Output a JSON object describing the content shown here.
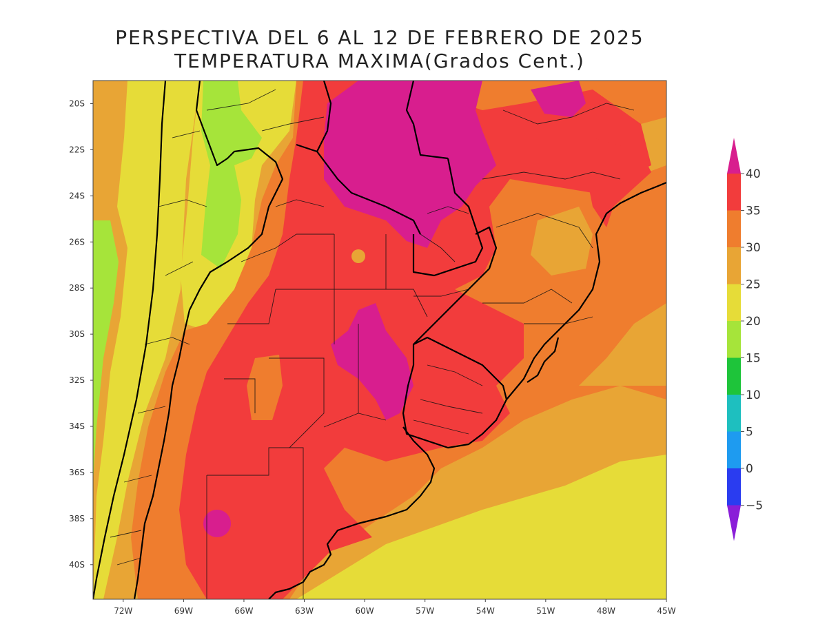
{
  "title": {
    "line1": "PERSPECTIVA DEL 6 AL 12 DE FEBRERO DE 2025",
    "line2": "TEMPERATURA MAXIMA(Grados Cent.)"
  },
  "map": {
    "extent": {
      "lon_min": -73.5,
      "lon_max": -45,
      "lat_max": -19,
      "lat_min": -41.5
    },
    "lat_ticks": [
      {
        "lat": -20,
        "label": "20S"
      },
      {
        "lat": -22,
        "label": "22S"
      },
      {
        "lat": -24,
        "label": "24S"
      },
      {
        "lat": -26,
        "label": "26S"
      },
      {
        "lat": -28,
        "label": "28S"
      },
      {
        "lat": -30,
        "label": "30S"
      },
      {
        "lat": -32,
        "label": "32S"
      },
      {
        "lat": -34,
        "label": "34S"
      },
      {
        "lat": -36,
        "label": "36S"
      },
      {
        "lat": -38,
        "label": "38S"
      },
      {
        "lat": -40,
        "label": "40S"
      }
    ],
    "lon_ticks": [
      {
        "lon": -72,
        "label": "72W"
      },
      {
        "lon": -69,
        "label": "69W"
      },
      {
        "lon": -66,
        "label": "66W"
      },
      {
        "lon": -63,
        "label": "63W"
      },
      {
        "lon": -60,
        "label": "60W"
      },
      {
        "lon": -57,
        "label": "57W"
      },
      {
        "lon": -54,
        "label": "54W"
      },
      {
        "lon": -51,
        "label": "51W"
      },
      {
        "lon": -48,
        "label": "48W"
      },
      {
        "lon": -45,
        "label": "45W"
      }
    ]
  },
  "colorbar": {
    "bins": [
      {
        "range": "35-40",
        "color": "#f23c3c"
      },
      {
        "range": "30-35",
        "color": "#ef7d2e"
      },
      {
        "range": "25-30",
        "color": "#e8a535"
      },
      {
        "range": "20-25",
        "color": "#e6dc38"
      },
      {
        "range": "15-20",
        "color": "#a6e43a"
      },
      {
        "range": "10-15",
        "color": "#1ec43a"
      },
      {
        "range": "5-10",
        "color": "#1ebfbf"
      },
      {
        "range": "0-5",
        "color": "#1e9bf0"
      },
      {
        "range": "-5-0",
        "color": "#2a3cf0"
      }
    ],
    "top_color": "#d81e8e",
    "bottom_color": "#8a1ed8",
    "labels": [
      "40",
      "35",
      "30",
      "25",
      "20",
      "15",
      "10",
      "5",
      "0",
      "−5"
    ]
  },
  "colors": {
    "hot": "#d81e8e",
    "red": "#f23c3c",
    "orange": "#ef7d2e",
    "amber": "#e8a535",
    "yellow": "#e6dc38",
    "lime": "#a6e43a"
  }
}
